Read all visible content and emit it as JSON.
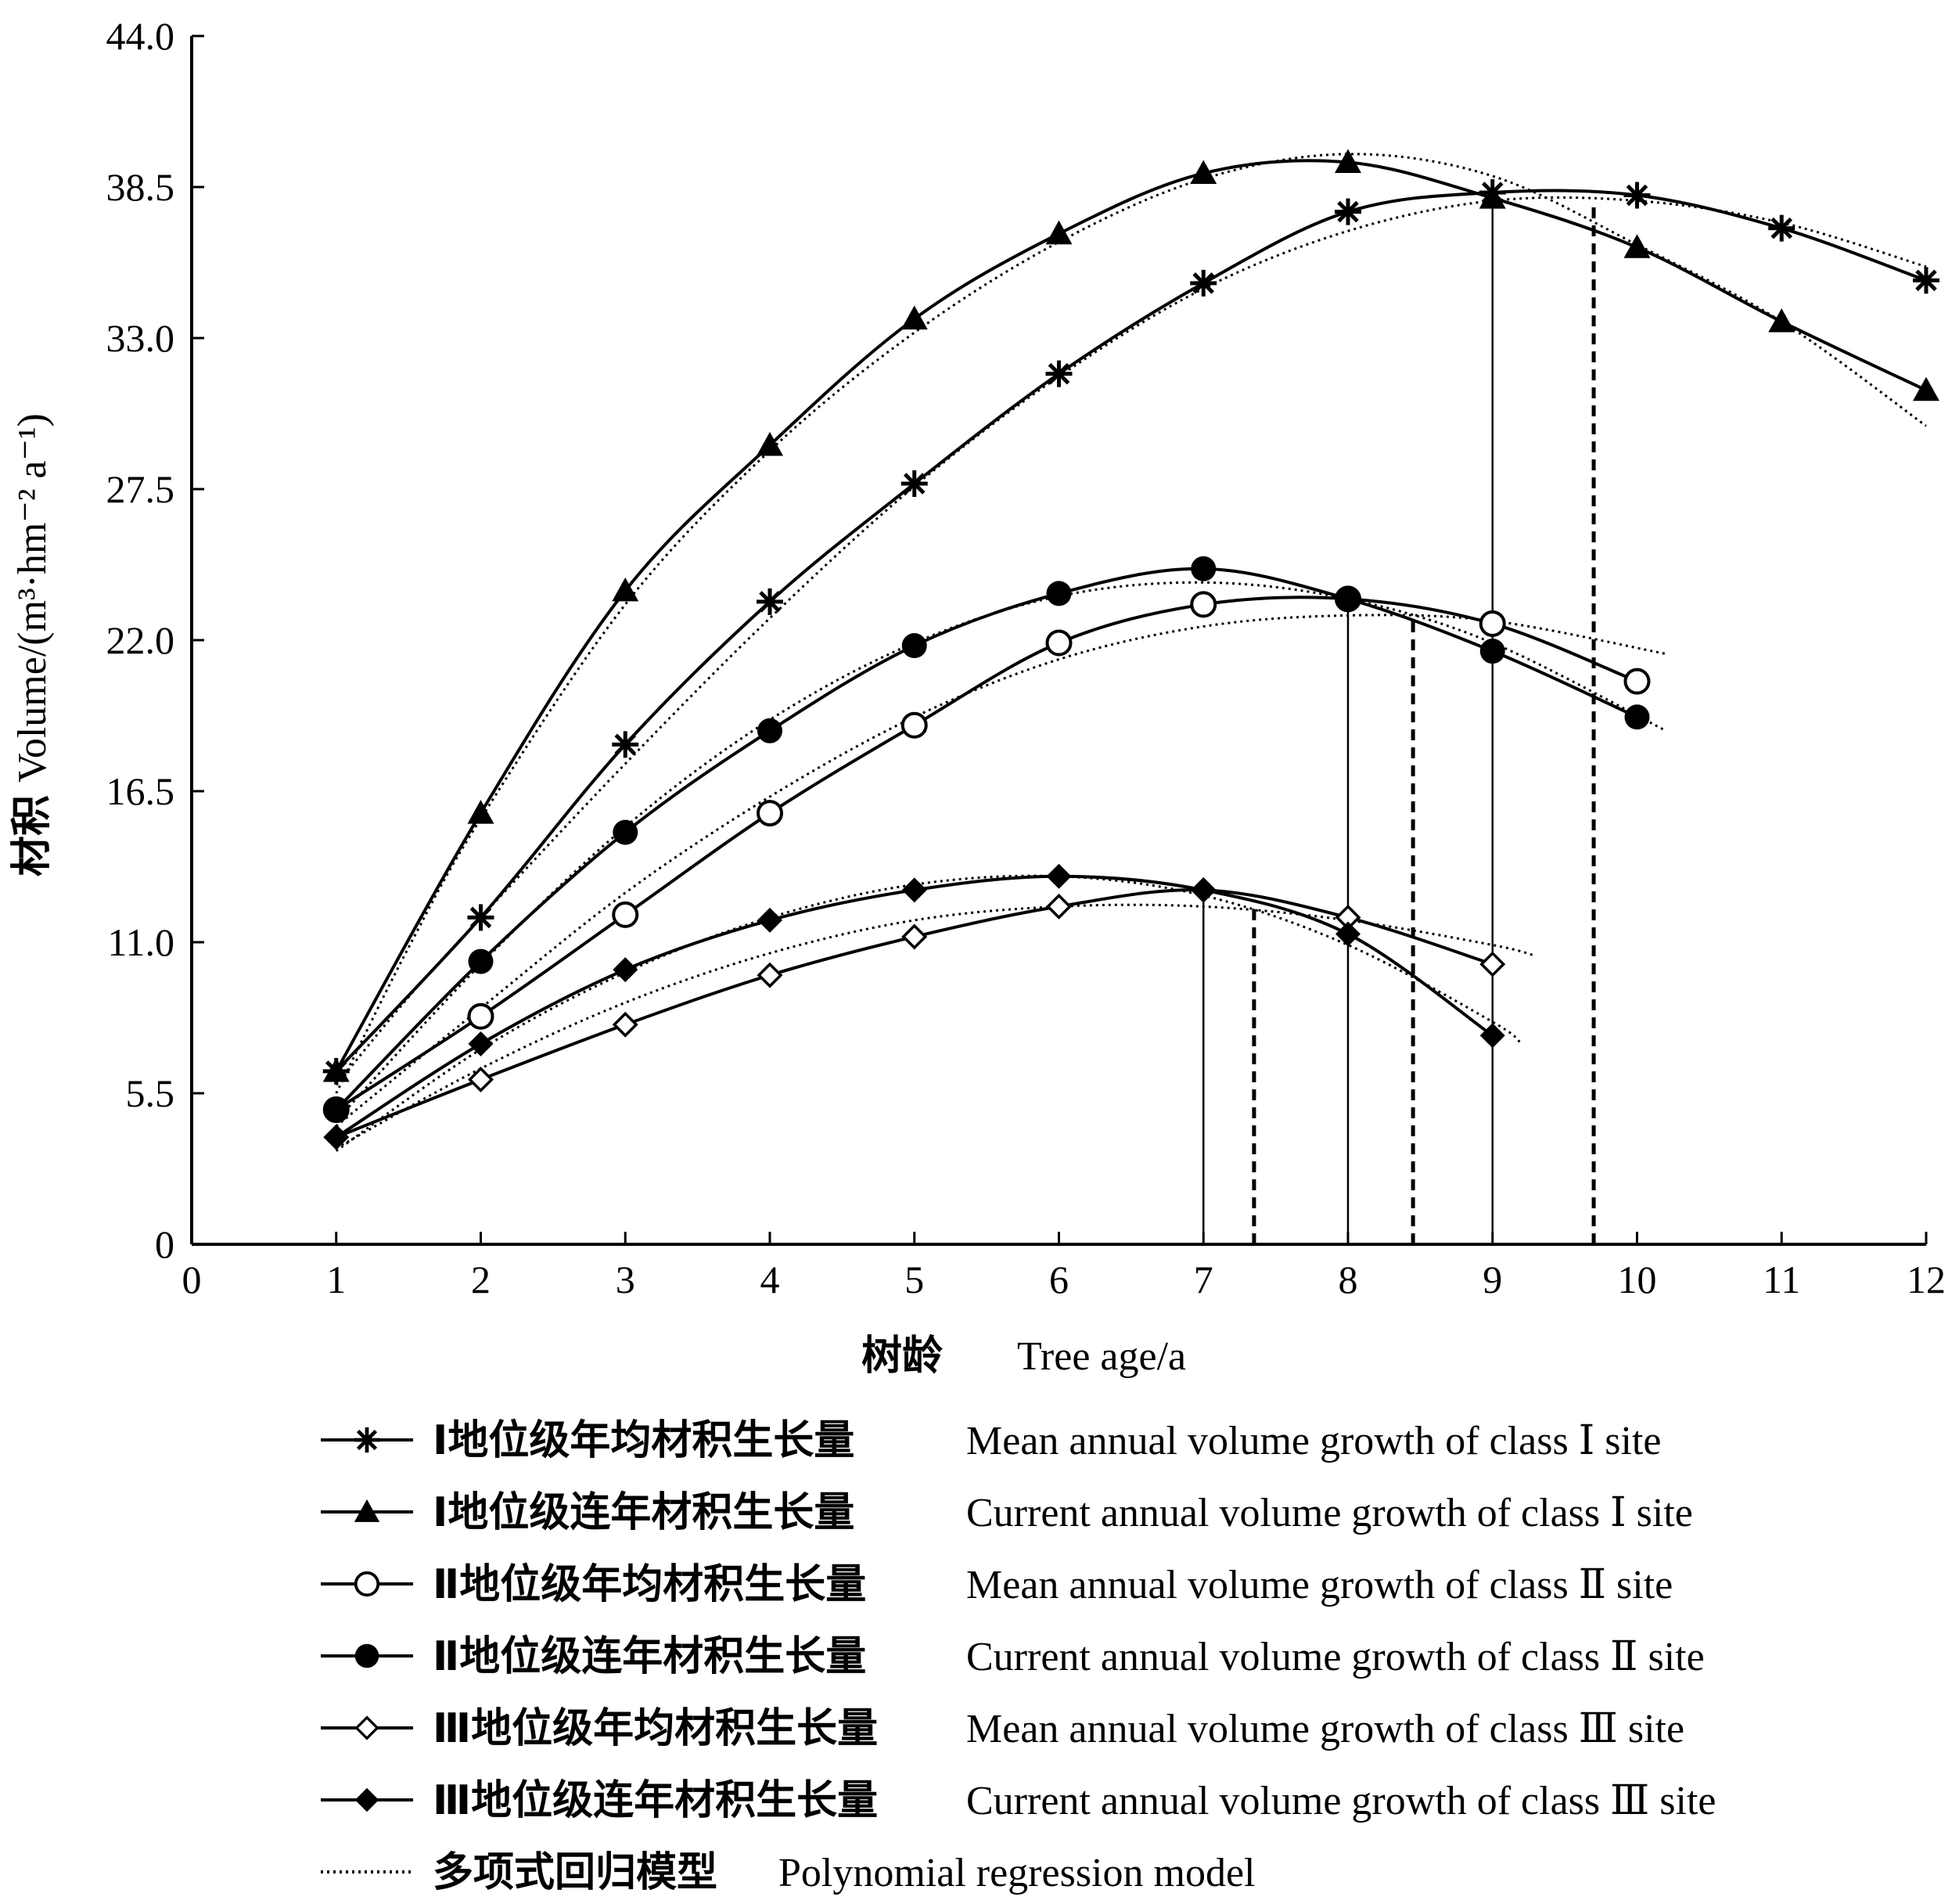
{
  "chart_data": {
    "type": "line",
    "xlabel_cn": "树龄",
    "xlabel_en": "Tree age/a",
    "ylabel_cn": "材积",
    "ylabel_en": "Volume/(m³·hm⁻² a⁻¹)",
    "xlim": [
      0,
      12
    ],
    "ylim": [
      0,
      44
    ],
    "x_ticks": [
      "0",
      "1",
      "2",
      "3",
      "4",
      "5",
      "6",
      "7",
      "8",
      "9",
      "10",
      "11",
      "12"
    ],
    "y_ticks": [
      "0",
      "5.5",
      "11.0",
      "16.5",
      "22.0",
      "27.5",
      "33.0",
      "38.5",
      "44.0"
    ],
    "grid": false,
    "legend_position": "bottom",
    "series": [
      {
        "name": "Ⅰ地位级年均材积生长量  Mean annual volume growth of classⅠsite",
        "label_cn": "Ⅰ地位级年均材积生长量",
        "label_en": "Mean annual volume growth of class Ⅰ site",
        "marker": "star",
        "x": [
          1,
          2,
          3,
          4,
          5,
          6,
          7,
          8,
          9,
          10,
          11,
          12
        ],
        "values": [
          6.3,
          11.9,
          18.2,
          23.4,
          27.7,
          31.7,
          35.0,
          37.6,
          38.3,
          38.2,
          37.0,
          35.1
        ]
      },
      {
        "name": "Ⅰ地位级连年材积生长量  Current annual volume growth of classⅠsite",
        "label_cn": "Ⅰ地位级连年材积生长量",
        "label_en": "Current annual volume growth of class Ⅰ site",
        "marker": "triangle",
        "x": [
          1,
          2,
          3,
          4,
          5,
          6,
          7,
          8,
          9,
          10,
          11,
          12
        ],
        "values": [
          6.3,
          15.7,
          23.8,
          29.1,
          33.7,
          36.8,
          39.0,
          39.4,
          38.1,
          36.3,
          33.6,
          31.1
        ]
      },
      {
        "name": "Ⅱ地位级年均材积生长量  Mean annual volume growth of classⅡsite",
        "label_cn": "Ⅱ地位级年均材积生长量",
        "label_en": "Mean annual volume growth of class Ⅱ site",
        "marker": "circle-open",
        "x": [
          1,
          2,
          3,
          4,
          5,
          6,
          7,
          8,
          9,
          10
        ],
        "values": [
          4.9,
          8.3,
          12.0,
          15.7,
          18.9,
          21.9,
          23.3,
          23.5,
          22.6,
          20.5
        ]
      },
      {
        "name": "Ⅱ地位级连年材积生长量  Current annual volume growth of classⅡsite",
        "label_cn": "Ⅱ地位级连年材积生长量",
        "label_en": "Current annual volume growth of class Ⅱ site",
        "marker": "circle-filled",
        "x": [
          1,
          2,
          3,
          4,
          5,
          6,
          7,
          8,
          9,
          10
        ],
        "values": [
          4.9,
          10.3,
          15.0,
          18.7,
          21.8,
          23.7,
          24.6,
          23.5,
          21.6,
          19.2
        ]
      },
      {
        "name": "Ⅲ地位级年均材积生长量  Mean annual volume growth of class Ⅲ site",
        "label_cn": "Ⅲ地位级年均材积生长量",
        "label_en": "Mean annual volume growth of class Ⅲ site",
        "marker": "diamond-open",
        "x": [
          1,
          2,
          3,
          4,
          5,
          6,
          7,
          8,
          9
        ],
        "values": [
          3.9,
          6.0,
          8.0,
          9.8,
          11.2,
          12.3,
          12.9,
          11.9,
          10.2
        ]
      },
      {
        "name": "Ⅲ地位级连年材积生长量  Current annual volume growth of class Ⅲ site",
        "label_cn": "Ⅲ地位级连年材积生长量",
        "label_en": "Current annual volume growth of class Ⅲ site",
        "marker": "diamond-filled",
        "x": [
          1,
          2,
          3,
          4,
          5,
          6,
          7,
          8,
          9
        ],
        "values": [
          3.9,
          7.3,
          10.0,
          11.8,
          12.9,
          13.4,
          12.9,
          11.3,
          7.6
        ]
      }
    ],
    "regression_label_cn": "多项式回归模型",
    "regression_label_en": "Polynomial regression model",
    "regression_curves": [
      {
        "of": "Ⅰ mean",
        "x": [
          1,
          1.5,
          2,
          3,
          4,
          5,
          6,
          7,
          8,
          9,
          10,
          11,
          12
        ],
        "values": [
          5.8,
          9.0,
          11.9,
          17.5,
          22.8,
          27.6,
          31.6,
          34.8,
          36.9,
          38.0,
          38.0,
          37.2,
          35.6
        ]
      },
      {
        "of": "Ⅰ current",
        "x": [
          1,
          1.5,
          2,
          3,
          4,
          5,
          6,
          7,
          8,
          9,
          10,
          11,
          12
        ],
        "values": [
          5.5,
          10.8,
          15.5,
          23.3,
          28.9,
          33.2,
          36.5,
          38.8,
          39.7,
          38.9,
          36.4,
          33.6,
          29.8
        ]
      },
      {
        "of": "Ⅱ mean",
        "x": [
          1,
          2,
          3,
          4,
          5,
          6,
          7,
          8,
          9,
          10.2
        ],
        "values": [
          4.3,
          8.6,
          12.8,
          16.3,
          19.2,
          21.3,
          22.5,
          22.9,
          22.7,
          21.5
        ]
      },
      {
        "of": "Ⅱ current",
        "x": [
          1,
          2,
          3,
          4,
          5,
          6,
          7,
          8,
          9,
          10.2
        ],
        "values": [
          4.5,
          10.2,
          15.2,
          19.1,
          21.9,
          23.6,
          24.1,
          23.5,
          21.9,
          18.7
        ]
      },
      {
        "of": "Ⅲ mean",
        "x": [
          1,
          2,
          3,
          4,
          5,
          6,
          7,
          8,
          9,
          9.3
        ],
        "values": [
          3.5,
          6.4,
          8.8,
          10.6,
          11.8,
          12.3,
          12.3,
          11.8,
          10.9,
          10.5
        ]
      },
      {
        "of": "Ⅲ current",
        "x": [
          1,
          2,
          3,
          4,
          5,
          6,
          7,
          8,
          9,
          9.2
        ],
        "values": [
          3.4,
          7.1,
          9.9,
          11.9,
          13.1,
          13.4,
          12.7,
          10.9,
          8.1,
          7.3
        ]
      }
    ],
    "vertical_lines": [
      {
        "style": "solid",
        "x": 7,
        "top": 12.9
      },
      {
        "style": "dashed",
        "x": 7.35,
        "top": 12.3
      },
      {
        "style": "solid",
        "x": 8,
        "top": 23.5
      },
      {
        "style": "dashed",
        "x": 8.45,
        "top": 22.8
      },
      {
        "style": "solid",
        "x": 9,
        "top": 38.3
      },
      {
        "style": "dashed",
        "x": 9.7,
        "top": 37.9
      }
    ]
  }
}
